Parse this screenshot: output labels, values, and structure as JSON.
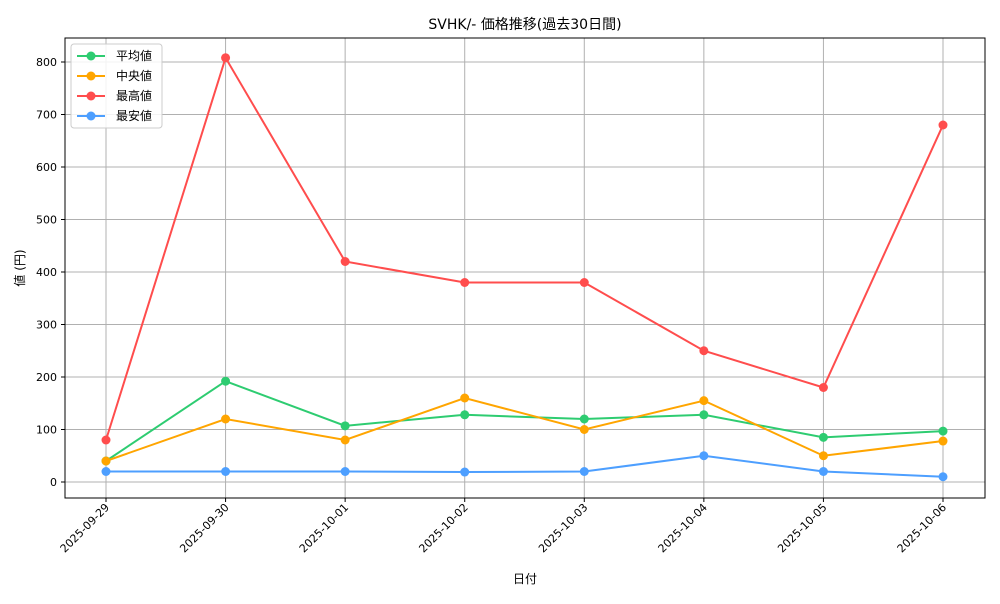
{
  "chart_data": {
    "type": "line",
    "title": "SVHK/- 価格推移(過去30日間)",
    "xlabel": "日付",
    "ylabel": "値 (円)",
    "categories": [
      "2025-09-29",
      "2025-09-30",
      "2025-10-01",
      "2025-10-02",
      "2025-10-03",
      "2025-10-04",
      "2025-10-05",
      "2025-10-06"
    ],
    "ylim": [
      -30,
      850
    ],
    "yticks": [
      0,
      100,
      200,
      300,
      400,
      500,
      600,
      700,
      800
    ],
    "grid": true,
    "legend_position": "top-left",
    "series": [
      {
        "name": "平均値",
        "color": "#2ecc71",
        "values": [
          40,
          192,
          107,
          128,
          120,
          128,
          85,
          97
        ]
      },
      {
        "name": "中央値",
        "color": "#ffa500",
        "values": [
          40,
          120,
          80,
          160,
          100,
          155,
          50,
          78
        ]
      },
      {
        "name": "最高値",
        "color": "#ff4d4d",
        "values": [
          80,
          808,
          420,
          380,
          380,
          250,
          180,
          680
        ]
      },
      {
        "name": "最安値",
        "color": "#4d9fff",
        "values": [
          20,
          20,
          20,
          19,
          20,
          50,
          20,
          10
        ]
      }
    ]
  }
}
